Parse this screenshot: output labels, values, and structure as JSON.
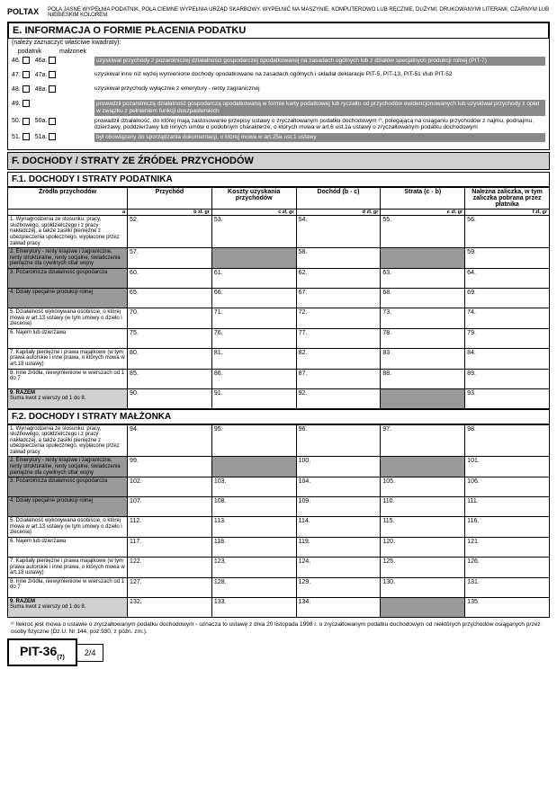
{
  "header": {
    "left": "POLTAX",
    "right": "POLA JASNE WYPEŁNIA PODATNIK, POLA CIEMNE WYPEŁNIA URZĄD SKARBOWY. WYPEŁNIĆ NA MASZYNIE, KOMPUTEROWO LUB RĘCZNIE, DUŻYMI, DRUKOWANYMI LITERAMI, CZARNYM LUB NIEBIESKIM KOLOREM."
  },
  "sectionE": {
    "title": "E. INFORMACJA O FORMIE PŁACENIA PODATKU",
    "sub": "(należy zaznaczyć właściwe kwadraty):",
    "colHdr": {
      "a": "podatnik",
      "b": "małżonek"
    },
    "rows": [
      {
        "n1": "46.",
        "n2": "46a.",
        "txt": "uzyskiwał przychody z pozarolniczej działalności gospodarczej opodatkowanej na zasadach ogólnych lub z działów specjalnych produkcji rolnej (PIT-7)",
        "dark": true
      },
      {
        "n1": "47.",
        "n2": "47a.",
        "txt": "uzyskiwał inne niż wyżej wymienione dochody opodatkowane na zasadach ogólnych i składał deklaracje PIT-5, PIT-13, PIT-51 i/lub PIT-52"
      },
      {
        "n1": "48.",
        "n2": "48a.",
        "txt": "uzyskiwał przychody wyłącznie z emerytury - renty zagranicznej"
      },
      {
        "n1": "49.",
        "n2": "",
        "txt": "prowadził pozarolniczą działalność gospodarczą opodatkowaną w formie karty podatkowej lub ryczałtu od przychodów ewidencjonowanych lub uzyskiwał przychody z opłat w związku z pełnieniem funkcji duszpasterskich",
        "dark": true
      },
      {
        "n1": "50.",
        "n2": "50a.",
        "txt": "prowadził działalność, do której mają zastosowanie przepisy ustawy o zryczałtowanym podatku dochodowym ²⁾, polegającą na osiąganiu przychodów z najmu, podnajmu, dzierżawy, poddzierżawy lub innych umów o podobnym charakterze, o których mowa w art.6 ust.1a ustawy o zryczałtowanym podatku dochodowym"
      },
      {
        "n1": "51.",
        "n2": "51a.",
        "txt": "był obowiązany do sporządzania dokumentacji, o której mowa w art.25a ust.1 ustawy",
        "dark": true
      }
    ]
  },
  "sectionF": {
    "title": "F. DOCHODY / STRATY ZE ŹRÓDEŁ PRZYCHODÓW"
  },
  "f1": {
    "title": "F.1. DOCHODY I STRATY PODATNIKA",
    "cols": [
      "Źródła przychodów",
      "Przychód",
      "Koszty uzyskania przychodów",
      "Dochód (b - c)",
      "Strata (c - b)",
      "Należna zaliczka, w tym zaliczka pobrana przez płatnika"
    ],
    "subcols": [
      "a",
      "b        zł,    gr",
      "c        zł,    gr",
      "d        zł,    gr",
      "e        zł,    gr",
      "f        zł,    gr"
    ],
    "rows": [
      {
        "lbl": "1. Wynagrodzenia ze stosunku: pracy, służbowego, spółdzielczego i z pracy nakładczej, a także zasiłki pieniężne z ubezpieczenia społecznego, wypłacone przez zakład pracy",
        "nums": [
          "52.",
          "53.",
          "54.",
          "55.",
          "56."
        ]
      },
      {
        "lbl": "2. Emerytury - renty krajowe i zagraniczne, renty strukturalne, renty socjalne, świadczenia pieniężne dla cywilnych ofiar wojny",
        "nums": [
          "57.",
          "",
          "58.",
          "",
          "59."
        ],
        "dark": true
      },
      {
        "lbl": "3. Pozarolnicza działalność gospodarcza",
        "nums": [
          "60.",
          "61.",
          "62.",
          "63.",
          "64."
        ],
        "dark": true
      },
      {
        "lbl": "4. Działy specjalne produkcji rolnej",
        "nums": [
          "65.",
          "66.",
          "67.",
          "68.",
          "69."
        ],
        "dark": true
      },
      {
        "lbl": "5. Działalność wykonywana osobiście, o której mowa w art.13 ustawy (w tym umowy o dzieło i zlecenia)",
        "nums": [
          "70.",
          "71.",
          "72.",
          "73.",
          "74."
        ]
      },
      {
        "lbl": "6. Najem lub dzierżawa",
        "nums": [
          "75.",
          "76.",
          "77.",
          "78.",
          "79."
        ]
      },
      {
        "lbl": "7. Kapitały pieniężne i prawa majątkowe (w tym prawa autorskie i inne prawa, o których mowa w art.18 ustawy)",
        "nums": [
          "80.",
          "81.",
          "82.",
          "83.",
          "84."
        ]
      },
      {
        "lbl": "8. Inne źródła, niewymienione w wierszach od 1 do 7",
        "nums": [
          "85.",
          "86.",
          "87.",
          "88.",
          "89."
        ]
      },
      {
        "lbl": "9. RAZEM",
        "sub": "Suma kwot z wierszy od 1 do 8.",
        "nums": [
          "90.",
          "91.",
          "92.",
          "",
          "93."
        ],
        "razem": true
      }
    ]
  },
  "f2": {
    "title": "F.2. DOCHODY I STRATY MAŁŻONKA",
    "rows": [
      {
        "lbl": "1. Wynagrodzenia ze stosunku: pracy, służbowego, spółdzielczego i z pracy nakładczej, a także zasiłki pieniężne z ubezpieczenia społecznego, wypłacone przez zakład pracy",
        "nums": [
          "94.",
          "95.",
          "96.",
          "97.",
          "98."
        ]
      },
      {
        "lbl": "2. Emerytury - renty krajowe i zagraniczne, renty strukturalne, renty socjalne, świadczenia pieniężne dla cywilnych ofiar wojny",
        "nums": [
          "99.",
          "",
          "100.",
          "",
          "101."
        ],
        "dark": true
      },
      {
        "lbl": "3. Pozarolnicza działalność gospodarcza",
        "nums": [
          "102.",
          "103.",
          "104.",
          "105.",
          "106."
        ],
        "dark": true
      },
      {
        "lbl": "4. Działy specjalne produkcji rolnej",
        "nums": [
          "107.",
          "108.",
          "109.",
          "110.",
          "111."
        ],
        "dark": true
      },
      {
        "lbl": "5. Działalność wykonywana osobiście, o której mowa w art.13 ustawy (w tym umowy o dzieło i zlecenia)",
        "nums": [
          "112.",
          "113.",
          "114.",
          "115.",
          "116."
        ]
      },
      {
        "lbl": "6. Najem lub dzierżawa",
        "nums": [
          "117.",
          "118.",
          "119.",
          "120.",
          "121."
        ]
      },
      {
        "lbl": "7. Kapitały pieniężne i prawa majątkowe (w tym prawa autorskie i inne prawa, o których mowa w art.18 ustawy)",
        "nums": [
          "122.",
          "123.",
          "124.",
          "125.",
          "126."
        ]
      },
      {
        "lbl": "8. Inne źródła, niewymienione w wierszach od 1 do 7",
        "nums": [
          "127.",
          "128.",
          "129.",
          "130.",
          "131."
        ]
      },
      {
        "lbl": "9. RAZEM",
        "sub": "Suma kwot z wierszy od 1 do 8.",
        "nums": [
          "132.",
          "133.",
          "134.",
          "",
          "135."
        ],
        "razem": true
      }
    ]
  },
  "footnote": "²⁾ Ilekroć jest mowa o ustawie o zryczałtowanym podatku dochodowym - oznacza to ustawę z dnia 20 listopada 1998 r. o zryczałtowanym podatku dochodowym od niektórych przychodów osiąganych przez osoby fizyczne (Dz.U. Nr 144, poz.930, z późn. zm.).",
  "formId": {
    "name": "PIT-36",
    "sub": "(7)",
    "page": "2/4"
  }
}
